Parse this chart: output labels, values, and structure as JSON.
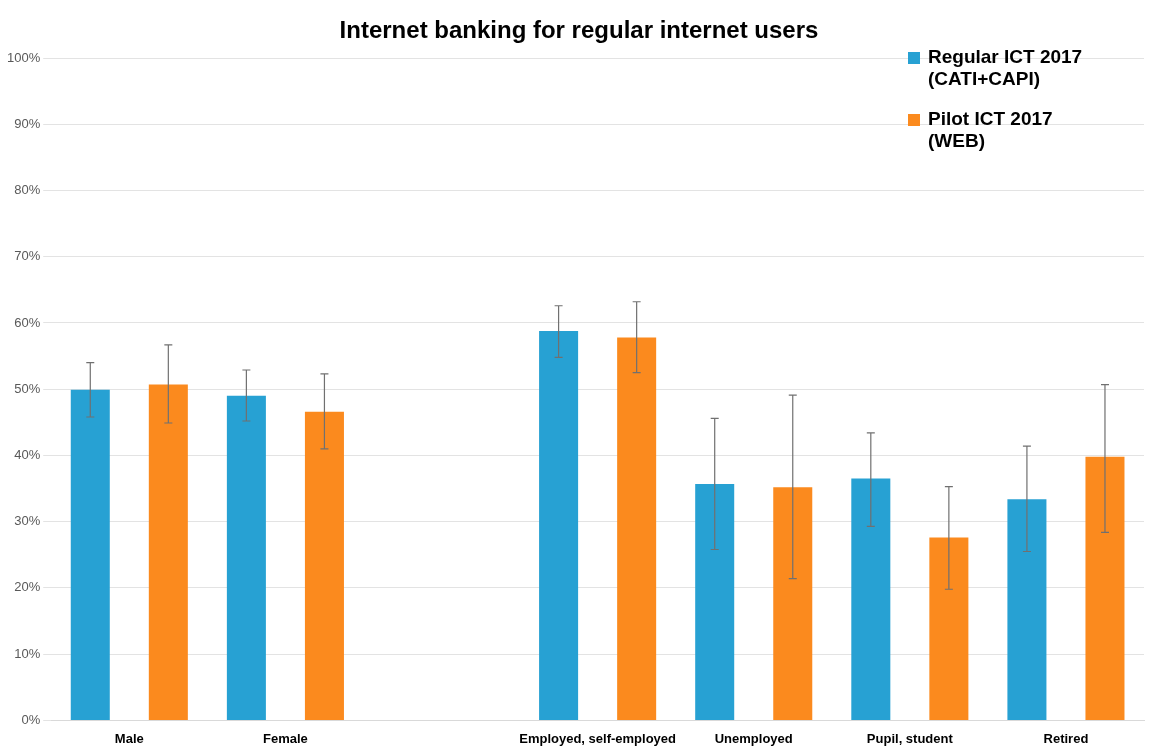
{
  "chart_data": {
    "type": "bar",
    "title": "Internet banking for regular internet users",
    "categories": [
      "Male",
      "Female",
      null,
      "Employed, self-employed",
      "Unemployed",
      "Pupil, student",
      "Retired"
    ],
    "series": [
      {
        "name": "Regular ICT 2017 (CATI+CAPI)",
        "color": "#27a1d3",
        "values": [
          49.9,
          49.0,
          null,
          58.8,
          35.7,
          36.5,
          33.4
        ],
        "errors": [
          [
            45.8,
            54.0
          ],
          [
            45.2,
            52.9
          ],
          null,
          [
            54.8,
            62.6
          ],
          [
            25.8,
            45.6
          ],
          [
            29.3,
            43.4
          ],
          [
            25.5,
            41.4
          ]
        ]
      },
      {
        "name": "Pilot ICT 2017 (WEB)",
        "color": "#fb8a1e",
        "values": [
          50.7,
          46.6,
          null,
          57.8,
          35.2,
          27.6,
          39.8
        ],
        "errors": [
          [
            44.9,
            56.7
          ],
          [
            41.0,
            52.3
          ],
          null,
          [
            52.5,
            63.2
          ],
          [
            21.4,
            49.1
          ],
          [
            19.8,
            35.3
          ],
          [
            28.4,
            50.7
          ]
        ]
      }
    ],
    "ylim": [
      0,
      100
    ],
    "yticks": [
      {
        "value": 0,
        "label": "0%"
      },
      {
        "value": 10,
        "label": "10%"
      },
      {
        "value": 20,
        "label": "20%"
      },
      {
        "value": 30,
        "label": "30%"
      },
      {
        "value": 40,
        "label": "40%"
      },
      {
        "value": 50,
        "label": "50%"
      },
      {
        "value": 60,
        "label": "60%"
      },
      {
        "value": 70,
        "label": "70%"
      },
      {
        "value": 80,
        "label": "80%"
      },
      {
        "value": 90,
        "label": "90%"
      },
      {
        "value": 100,
        "label": "100%"
      }
    ],
    "grid": "y",
    "legend": "top right"
  }
}
